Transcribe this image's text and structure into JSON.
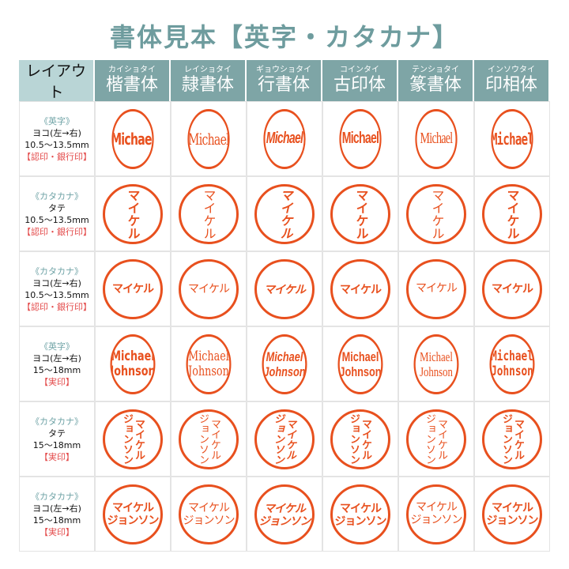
{
  "title": "書体見本【英字・カタカナ】",
  "header": {
    "layout_label": "レイアウト",
    "fonts": [
      {
        "kana": "カイショタイ",
        "name": "楷書体"
      },
      {
        "kana": "レイショタイ",
        "name": "隷書体"
      },
      {
        "kana": "ギョウショタイ",
        "name": "行書体"
      },
      {
        "kana": "コインタイ",
        "name": "古印体"
      },
      {
        "kana": "テンショタイ",
        "name": "篆書体"
      },
      {
        "kana": "インソウタイ",
        "name": "印相体"
      }
    ]
  },
  "rows": [
    {
      "script": "《英字》",
      "direction": "ヨコ(左→右)",
      "size": "10.5〜13.5mm",
      "use": "【認印・銀行印】",
      "stamp": "Michael",
      "style": "s-h"
    },
    {
      "script": "《カタカナ》",
      "direction": "タテ",
      "size": "10.5〜13.5mm",
      "use": "【認印・銀行印】",
      "stamp": "マイケル",
      "style": "s-v"
    },
    {
      "script": "《カタカナ》",
      "direction": "ヨコ(左→右)",
      "size": "10.5〜13.5mm",
      "use": "【認印・銀行印】",
      "stamp": "マイケル",
      "style": "s-k"
    },
    {
      "script": "《英字》",
      "direction": "ヨコ(左→右)",
      "size": "15〜18mm",
      "use": "【実印】",
      "stamp": "Michael Johnson",
      "style": "s-h2"
    },
    {
      "script": "《カタカナ》",
      "direction": "タテ",
      "size": "15〜18mm",
      "use": "【実印】",
      "stamp": "マイケル ジョンソン",
      "style": "s-v2"
    },
    {
      "script": "《カタカナ》",
      "direction": "ヨコ(左→右)",
      "size": "15〜18mm",
      "use": "【実印】",
      "stamp": "マイケル ジョンソン",
      "style": "s-k"
    }
  ],
  "colors": {
    "stamp": "#e8501e",
    "header": "#7ea5a6",
    "title": "#6e9c9e",
    "use": "#e34a4a"
  }
}
